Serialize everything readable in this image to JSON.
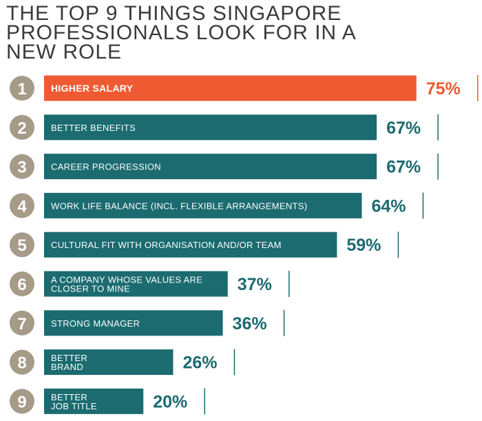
{
  "title": "THE TOP 9 THINGS SINGAPORE PROFESSIONALS LOOK FOR IN A NEW ROLE",
  "colors": {
    "bar": "#1b6b70",
    "highlight": "#f05a32",
    "rank_circle": "#a69a88",
    "title_text": "#3a3a3a"
  },
  "chart_data": {
    "type": "bar",
    "orientation": "horizontal",
    "title": "THE TOP 9 THINGS SINGAPORE PROFESSIONALS LOOK FOR IN A NEW ROLE",
    "xlabel": "",
    "ylabel": "",
    "xlim": [
      0,
      100
    ],
    "unit": "%",
    "grid": false,
    "legend": "none",
    "items": [
      {
        "rank": "1",
        "label": [
          "HIGHER SALARY"
        ],
        "value": 75,
        "value_label": "75%",
        "highlight": true
      },
      {
        "rank": "2",
        "label": [
          "BETTER BENEFITS"
        ],
        "value": 67,
        "value_label": "67%",
        "highlight": false
      },
      {
        "rank": "3",
        "label": [
          "CAREER PROGRESSION"
        ],
        "value": 67,
        "value_label": "67%",
        "highlight": false
      },
      {
        "rank": "4",
        "label": [
          "WORK LIFE BALANCE (INCL. FLEXIBLE ARRANGEMENTS)"
        ],
        "value": 64,
        "value_label": "64%",
        "highlight": false
      },
      {
        "rank": "5",
        "label": [
          "CULTURAL FIT WITH ORGANISATION AND/OR TEAM"
        ],
        "value": 59,
        "value_label": "59%",
        "highlight": false
      },
      {
        "rank": "6",
        "label": [
          "A COMPANY WHOSE VALUES ARE",
          "CLOSER TO MINE"
        ],
        "value": 37,
        "value_label": "37%",
        "highlight": false
      },
      {
        "rank": "7",
        "label": [
          "STRONG MANAGER"
        ],
        "value": 36,
        "value_label": "36%",
        "highlight": false
      },
      {
        "rank": "8",
        "label": [
          "BETTER",
          "BRAND"
        ],
        "value": 26,
        "value_label": "26%",
        "highlight": false
      },
      {
        "rank": "9",
        "label": [
          "BETTER",
          "JOB TITLE"
        ],
        "value": 20,
        "value_label": "20%",
        "highlight": false
      }
    ]
  }
}
